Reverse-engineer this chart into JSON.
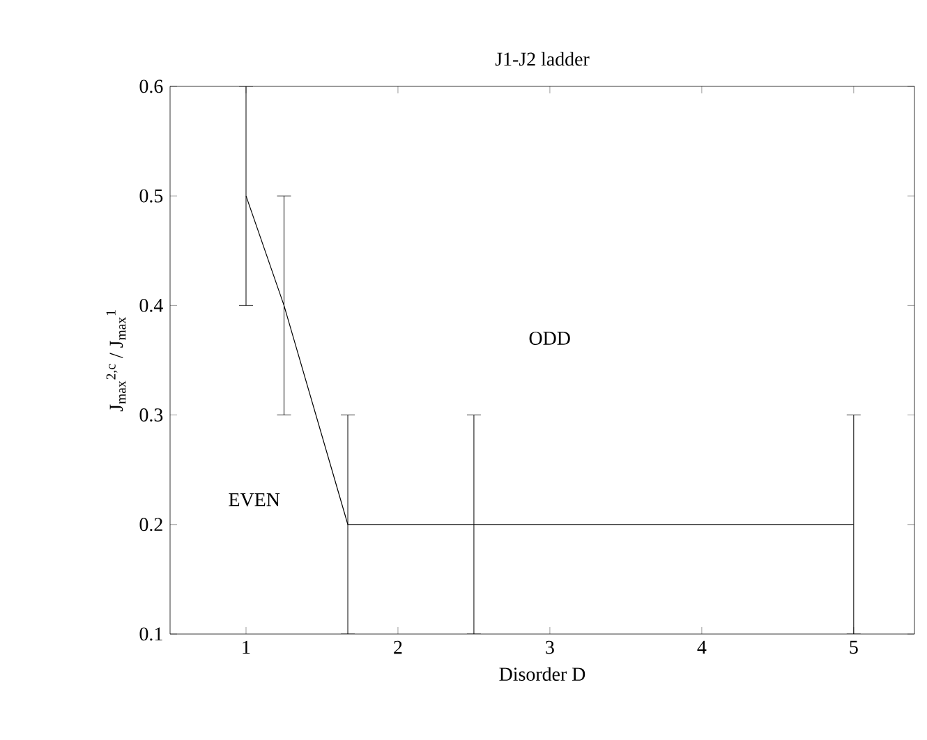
{
  "chart_data": {
    "type": "line",
    "title": "J1-J2 ladder",
    "xlabel": "Disorder D",
    "ylabel": "J$_{max}$$^{2,c}$ / J$_{max}$$^{1}$",
    "x": [
      1,
      1.25,
      1.67,
      2.5,
      5
    ],
    "values": [
      0.5,
      0.4,
      0.2,
      0.2,
      0.2
    ],
    "errors": [
      0.1,
      0.1,
      0.1,
      0.1,
      0.1
    ],
    "color": "#000000",
    "marker": "none",
    "line_style": "solid",
    "grid": false,
    "xlim": [
      0.5,
      5.4
    ],
    "ylim": [
      0.1,
      0.6
    ],
    "xticks": [
      1,
      2,
      3,
      4,
      5
    ],
    "yticks": [
      0.1,
      0.2,
      0.3,
      0.4,
      0.5,
      0.6
    ],
    "annotations": [
      "ODD",
      "EVEN"
    ]
  }
}
